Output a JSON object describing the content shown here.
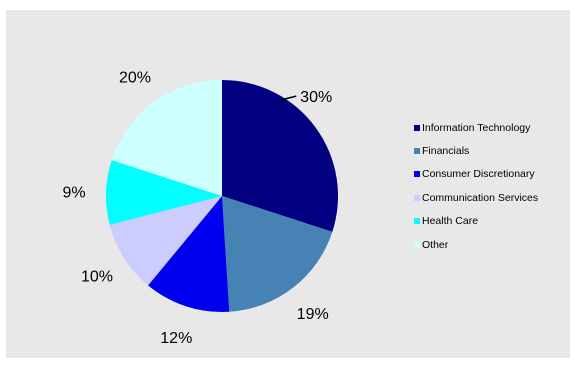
{
  "chart_data": {
    "type": "pie",
    "categories": [
      "Information Technology",
      "Financials",
      "Consumer Discretionary",
      "Communication Services",
      "Health Care",
      "Other"
    ],
    "values": [
      30,
      19,
      12,
      10,
      9,
      20
    ],
    "labels": [
      "30%",
      "19%",
      "12%",
      "10%",
      "9%",
      "20%"
    ],
    "colors": [
      "#000080",
      "#4682b4",
      "#0000ee",
      "#ccccff",
      "#00ffff",
      "#ccffff"
    ],
    "start_angle_deg": 0,
    "direction": "clockwise",
    "legend_position": "right"
  }
}
